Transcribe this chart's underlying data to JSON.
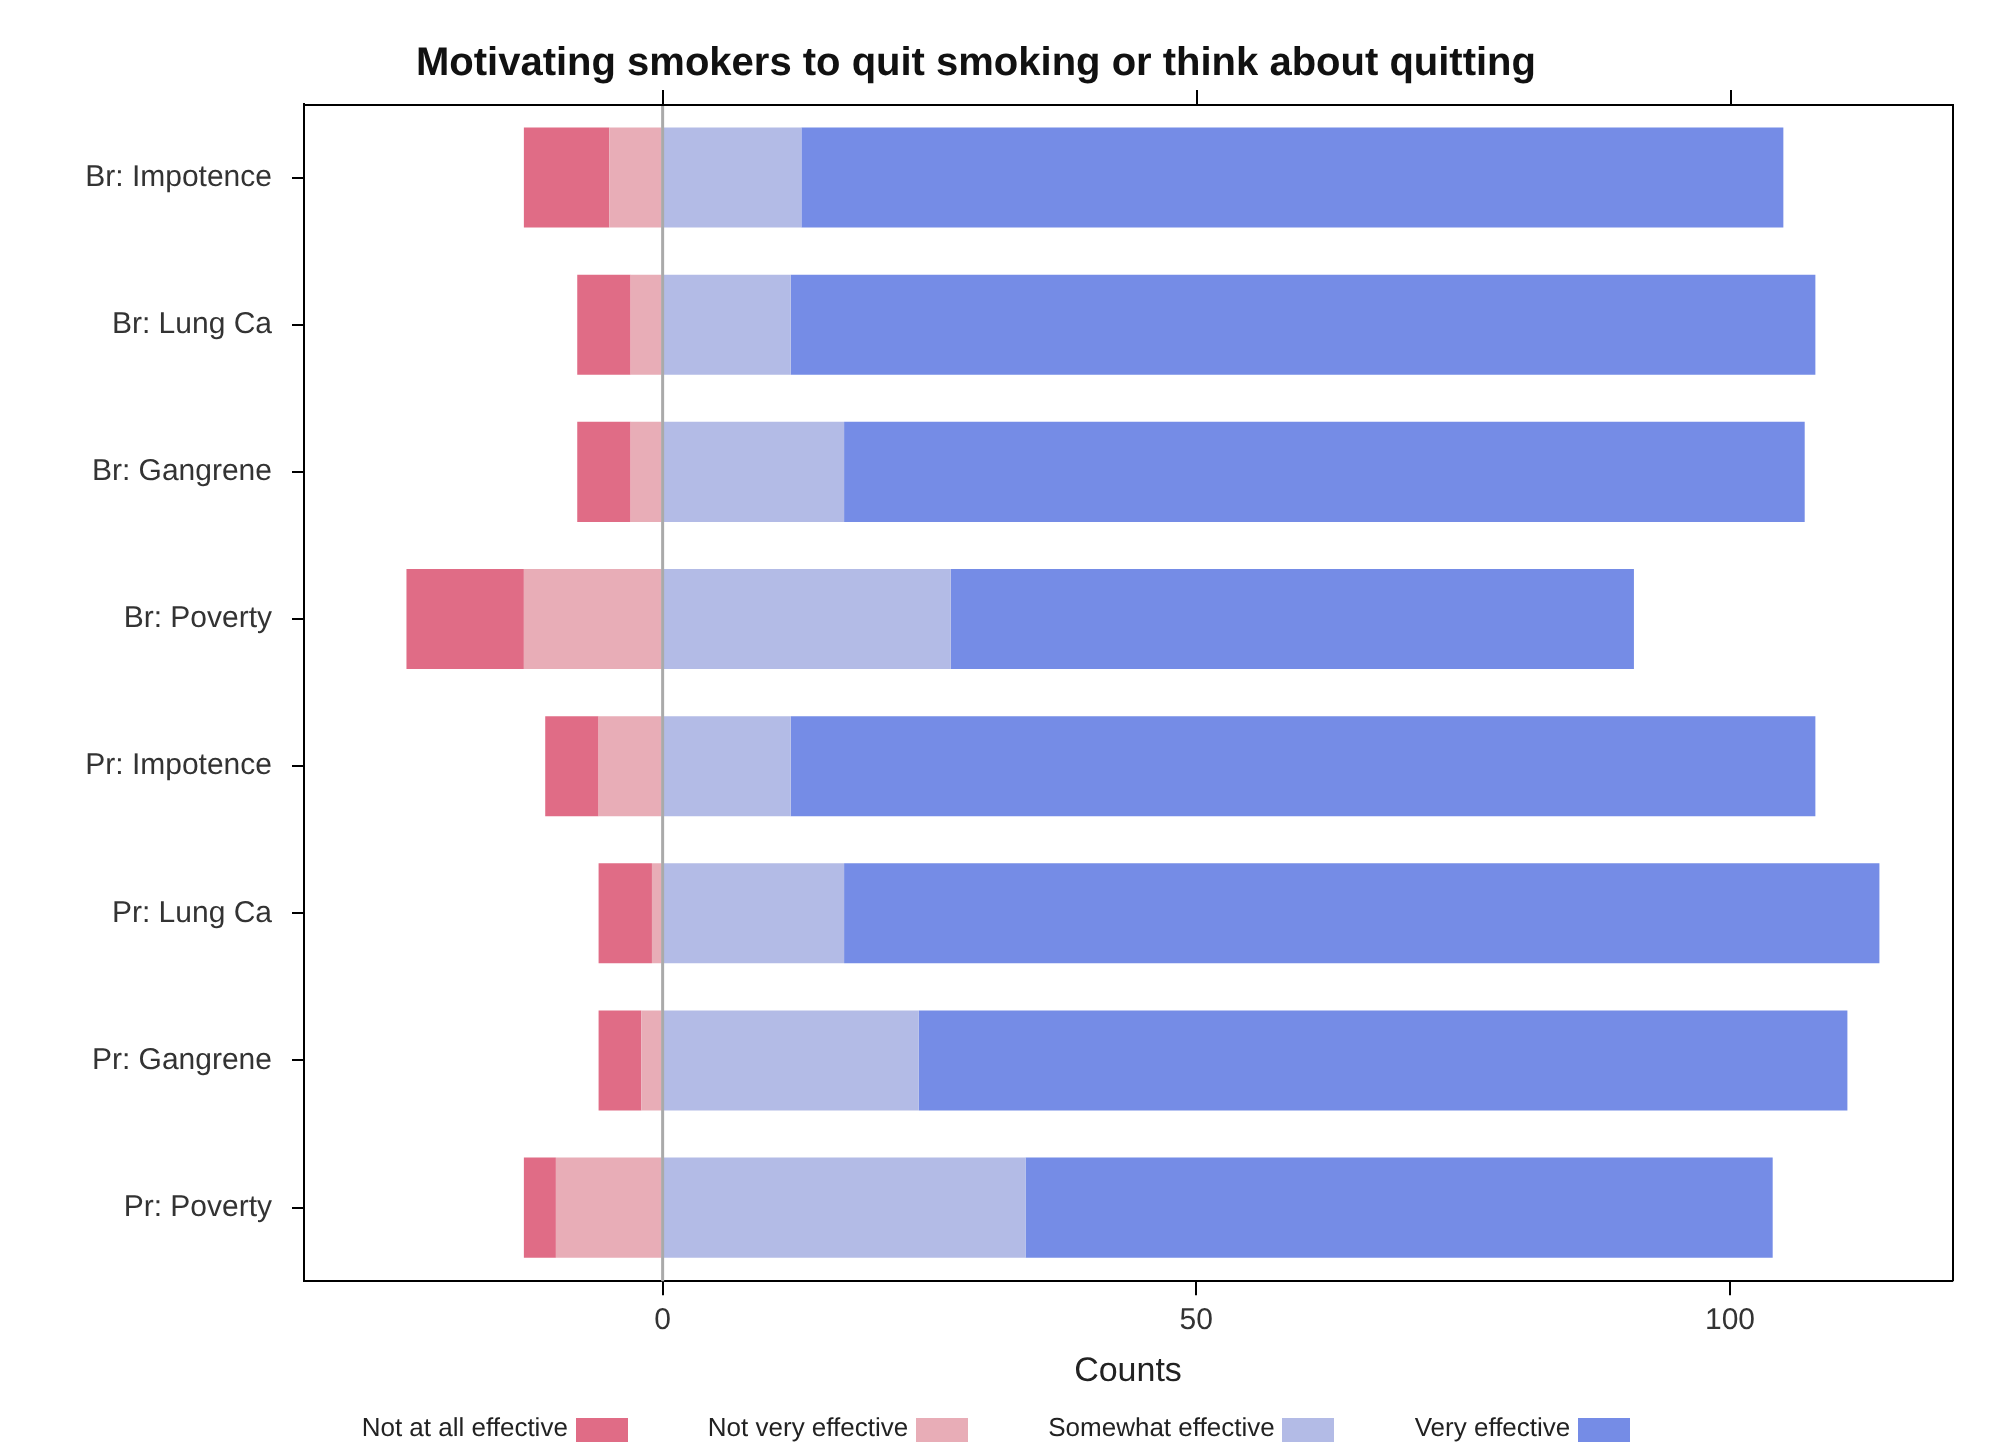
{
  "chart_data": {
    "type": "bar",
    "orientation": "horizontal",
    "stacked": true,
    "title": "Motivating smokers to quit smoking or think about quitting",
    "xlabel": "Counts",
    "categories": [
      "Br: Impotence",
      "Br: Lung Ca",
      "Br: Gangrene",
      "Br: Poverty",
      "Pr: Impotence",
      "Pr: Lung Ca",
      "Pr: Gangrene",
      "Pr: Poverty"
    ],
    "series": [
      {
        "name": "Not at all effective",
        "color": "#e06c86",
        "values": [
          -8,
          -5,
          -5,
          -11,
          -5,
          -5,
          -4,
          -3
        ]
      },
      {
        "name": "Not very effective",
        "color": "#e8adb7",
        "values": [
          -5,
          -3,
          -3,
          -13,
          -6,
          -1,
          -2,
          -10
        ]
      },
      {
        "name": "Somewhat effective",
        "color": "#b3bbe6",
        "values": [
          13,
          12,
          17,
          27,
          12,
          17,
          24,
          34
        ]
      },
      {
        "name": "Very effective",
        "color": "#758ce6",
        "values": [
          92,
          96,
          90,
          64,
          96,
          97,
          87,
          70
        ]
      }
    ],
    "xlim": [
      -33.6,
      120.8
    ],
    "xticks": [
      0,
      50,
      100
    ],
    "ref_lines": [
      {
        "axis": "x",
        "value": 0,
        "color": "#aaaaaa"
      }
    ],
    "grid": false,
    "legend": "bottom"
  }
}
